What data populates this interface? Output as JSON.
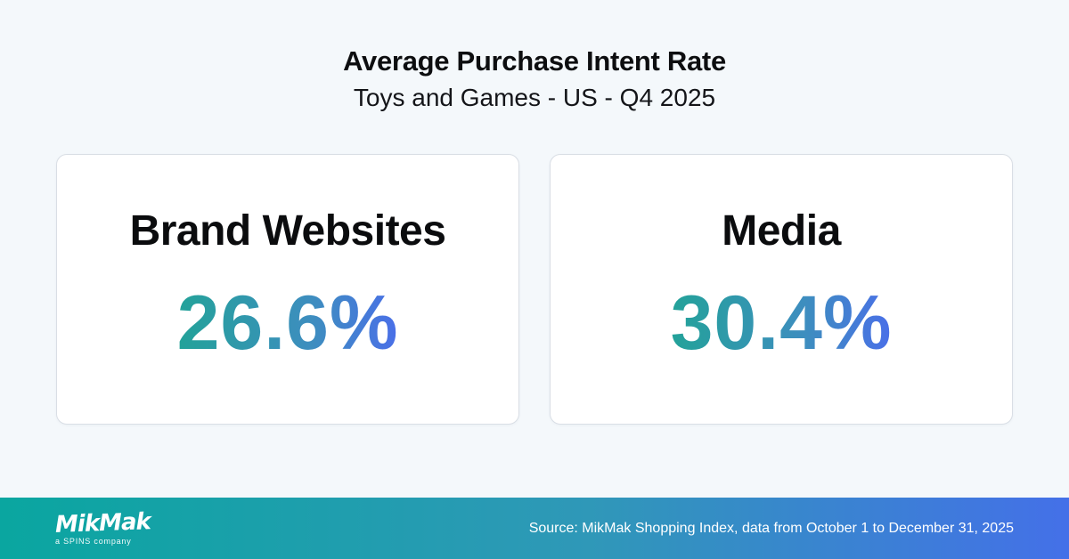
{
  "page": {
    "title": "Average Purchase Intent Rate",
    "subtitle": "Toys and Games - US - Q4 2025"
  },
  "cards": [
    {
      "label": "Brand Websites",
      "value": "26.6%"
    },
    {
      "label": "Media",
      "value": "30.4%"
    }
  ],
  "footer": {
    "logo_text": "MikMak",
    "logo_tagline": "a SPINS company",
    "source": "Source: MikMak Shopping Index, data from October 1 to December 31, 2025"
  },
  "colors": {
    "page_background": "#f4f8fb",
    "card_background": "#ffffff",
    "card_border": "#d9dee5",
    "heading_text": "#0d0e10",
    "value_gradient_start": "#23a299",
    "value_gradient_end": "#4a6fe8",
    "footer_gradient_start": "#0aa6a0",
    "footer_gradient_end": "#4470e8",
    "footer_text": "#ffffff"
  },
  "chart_data": {
    "type": "table",
    "title": "Average Purchase Intent Rate",
    "subtitle": "Toys and Games - US - Q4 2025",
    "categories": [
      "Brand Websites",
      "Media"
    ],
    "values": [
      26.6,
      30.4
    ],
    "unit": "%",
    "source": "Source: MikMak Shopping Index, data from October 1 to December 31, 2025"
  }
}
